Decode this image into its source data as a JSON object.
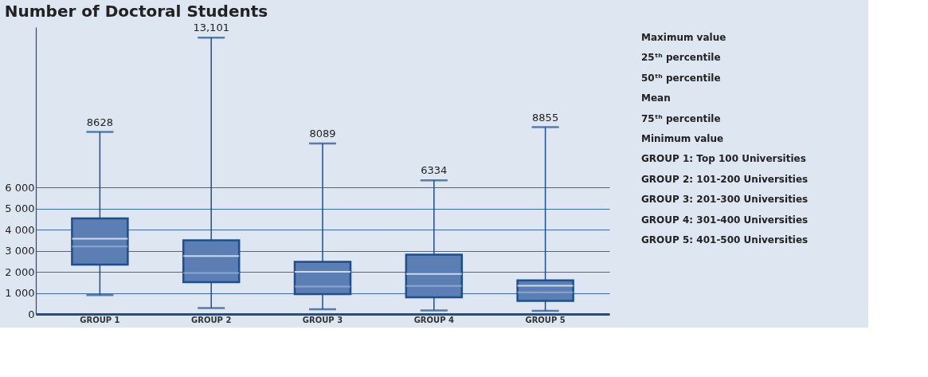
{
  "chart_data": {
    "type": "box",
    "title": "Number of Doctoral Students",
    "categories": [
      "GROUP 1",
      "GROUP 2",
      "GROUP 3",
      "GROUP 4",
      "GROUP 5"
    ],
    "series": [
      {
        "color": "#5b7fb5",
        "boxes": [
          {
            "low": 900,
            "q1": 2340,
            "median": 3200,
            "q3": 4530,
            "high": 8628,
            "mean": 3570
          },
          {
            "low": 280,
            "q1": 1510,
            "median": 1950,
            "q3": 3490,
            "high": 13101,
            "mean": 2750
          },
          {
            "low": 230,
            "q1": 940,
            "median": 1300,
            "q3": 2470,
            "high": 8089,
            "mean": 2000
          },
          {
            "low": 170,
            "q1": 790,
            "median": 1330,
            "q3": 2810,
            "high": 6334,
            "mean": 1900
          },
          {
            "low": 150,
            "q1": 620,
            "median": 1030,
            "q3": 1600,
            "high": 8855,
            "mean": 1340
          }
        ]
      }
    ],
    "ylim": [
      0,
      13600
    ],
    "yticks": [
      0,
      {
        "value": 1000,
        "label": "1 000"
      },
      {
        "value": 2000,
        "label": "2 000"
      },
      {
        "value": 3000,
        "label": "3 000"
      },
      {
        "value": 4000,
        "label": "4 000"
      },
      {
        "value": 5000,
        "label": "5 000"
      },
      {
        "value": 6000,
        "label": "6 000"
      }
    ],
    "grid": "y",
    "annotations": [
      {
        "text": "8628",
        "x": "GROUP 1",
        "y": 8628
      },
      {
        "text": "13,101",
        "x": "GROUP 2",
        "y": 13101
      },
      {
        "text": "8089",
        "x": "GROUP 3",
        "y": 8089
      },
      {
        "text": "6334",
        "x": "GROUP 4",
        "y": 6334
      },
      {
        "text": "8855",
        "x": "GROUP 5",
        "y": 8855
      },
      "Maximum value",
      "25ᵗʰ percentile",
      "50ᵗʰ percentile",
      "Mean",
      "75ᵗʰ percentile",
      "Minimum value",
      "GROUP 1:  Top 100 Universities",
      "GROUP 2:  101-200 Universities",
      "GROUP 3:  201-300 Universities",
      "GROUP 4:  301-400 Universities",
      "GROUP 5:  401-500 Universities"
    ]
  }
}
